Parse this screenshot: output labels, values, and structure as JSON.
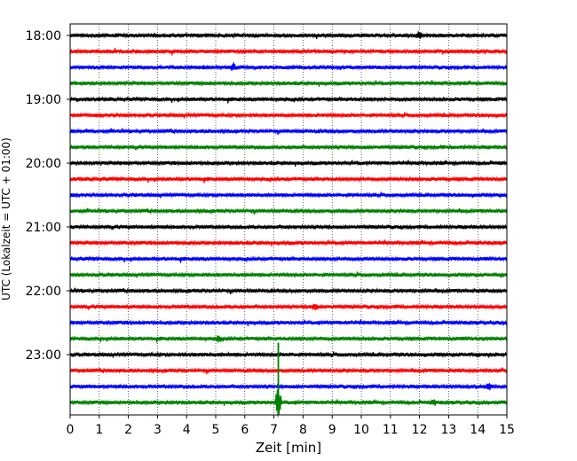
{
  "chart_data": {
    "type": "line",
    "title": "",
    "xlabel": "Zeit  [min]",
    "ylabel": "UTC (Lokalzeit = UTC + 01:00)",
    "xlim": [
      0,
      15
    ],
    "x_ticks": [
      0,
      1,
      2,
      3,
      4,
      5,
      6,
      7,
      8,
      9,
      10,
      11,
      12,
      13,
      14,
      15
    ],
    "y_ticks": [
      "18:00",
      "19:00",
      "20:00",
      "21:00",
      "22:00",
      "23:00"
    ],
    "grid": "vertical-dotted",
    "trace_interval_min": 15,
    "trace_start": "18:00",
    "trace_count": 24,
    "trace_colors": [
      "#000000",
      "#ff0000",
      "#0000ff",
      "#008000"
    ],
    "events": [
      {
        "trace": 0,
        "x": 12.0,
        "amp": 1.4
      },
      {
        "trace": 2,
        "x": 5.6,
        "amp": 1.8
      },
      {
        "trace": 17,
        "x": 8.4,
        "amp": 1.2
      },
      {
        "trace": 19,
        "x": 5.1,
        "amp": 1.3
      },
      {
        "trace": 22,
        "x": 14.4,
        "amp": 1.2
      },
      {
        "trace": 23,
        "x": 7.15,
        "amp": 9.0
      },
      {
        "trace": 23,
        "x": 12.5,
        "amp": 1.3
      }
    ]
  }
}
